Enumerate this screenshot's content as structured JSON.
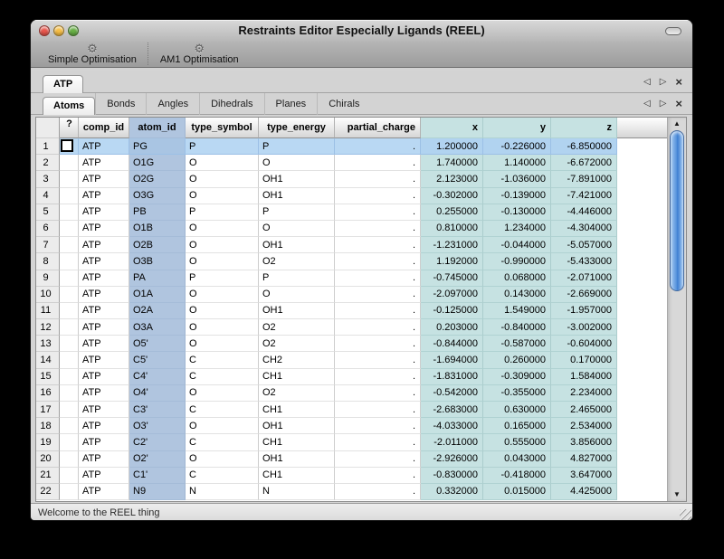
{
  "window": {
    "title": "Restraints Editor Especially Ligands (REEL)",
    "traffic_lights": [
      "close",
      "minimize",
      "zoom"
    ],
    "toolbar_pill": "toolbar-toggle"
  },
  "toolbar": {
    "items": [
      {
        "label": "Simple Optimisation",
        "icon": "gear-icon"
      },
      {
        "label": "AM1 Optimisation",
        "icon": "gear-icon"
      }
    ]
  },
  "doc_tab_bar": {
    "tabs": [
      {
        "label": "ATP",
        "selected": true
      }
    ],
    "controls": [
      {
        "name": "nav-left",
        "glyph": "left-triangle"
      },
      {
        "name": "nav-right",
        "glyph": "right-triangle"
      },
      {
        "name": "close",
        "glyph": "x"
      }
    ]
  },
  "section_tab_bar": {
    "tabs": [
      {
        "label": "Atoms",
        "selected": true
      },
      {
        "label": "Bonds",
        "selected": false
      },
      {
        "label": "Angles",
        "selected": false
      },
      {
        "label": "Dihedrals",
        "selected": false
      },
      {
        "label": "Planes",
        "selected": false
      },
      {
        "label": "Chirals",
        "selected": false
      }
    ],
    "controls": [
      {
        "name": "nav-left",
        "glyph": "left-triangle"
      },
      {
        "name": "nav-right",
        "glyph": "right-triangle"
      },
      {
        "name": "close",
        "glyph": "x"
      }
    ]
  },
  "table": {
    "columns": [
      "",
      "?",
      "comp_id",
      "atom_id",
      "type_symbol",
      "type_energy",
      "partial_charge",
      "x",
      "y",
      "z"
    ],
    "selected_row": 1,
    "rows": [
      [
        "1",
        "",
        "ATP",
        "PG",
        "P",
        "P",
        ".",
        "1.200000",
        "-0.226000",
        "-6.850000"
      ],
      [
        "2",
        "",
        "ATP",
        "O1G",
        "O",
        "O",
        ".",
        "1.740000",
        "1.140000",
        "-6.672000"
      ],
      [
        "3",
        "",
        "ATP",
        "O2G",
        "O",
        "OH1",
        ".",
        "2.123000",
        "-1.036000",
        "-7.891000"
      ],
      [
        "4",
        "",
        "ATP",
        "O3G",
        "O",
        "OH1",
        ".",
        "-0.302000",
        "-0.139000",
        "-7.421000"
      ],
      [
        "5",
        "",
        "ATP",
        "PB",
        "P",
        "P",
        ".",
        "0.255000",
        "-0.130000",
        "-4.446000"
      ],
      [
        "6",
        "",
        "ATP",
        "O1B",
        "O",
        "O",
        ".",
        "0.810000",
        "1.234000",
        "-4.304000"
      ],
      [
        "7",
        "",
        "ATP",
        "O2B",
        "O",
        "OH1",
        ".",
        "-1.231000",
        "-0.044000",
        "-5.057000"
      ],
      [
        "8",
        "",
        "ATP",
        "O3B",
        "O",
        "O2",
        ".",
        "1.192000",
        "-0.990000",
        "-5.433000"
      ],
      [
        "9",
        "",
        "ATP",
        "PA",
        "P",
        "P",
        ".",
        "-0.745000",
        "0.068000",
        "-2.071000"
      ],
      [
        "10",
        "",
        "ATP",
        "O1A",
        "O",
        "O",
        ".",
        "-2.097000",
        "0.143000",
        "-2.669000"
      ],
      [
        "11",
        "",
        "ATP",
        "O2A",
        "O",
        "OH1",
        ".",
        "-0.125000",
        "1.549000",
        "-1.957000"
      ],
      [
        "12",
        "",
        "ATP",
        "O3A",
        "O",
        "O2",
        ".",
        "0.203000",
        "-0.840000",
        "-3.002000"
      ],
      [
        "13",
        "",
        "ATP",
        "O5'",
        "O",
        "O2",
        ".",
        "-0.844000",
        "-0.587000",
        "-0.604000"
      ],
      [
        "14",
        "",
        "ATP",
        "C5'",
        "C",
        "CH2",
        ".",
        "-1.694000",
        "0.260000",
        "0.170000"
      ],
      [
        "15",
        "",
        "ATP",
        "C4'",
        "C",
        "CH1",
        ".",
        "-1.831000",
        "-0.309000",
        "1.584000"
      ],
      [
        "16",
        "",
        "ATP",
        "O4'",
        "O",
        "O2",
        ".",
        "-0.542000",
        "-0.355000",
        "2.234000"
      ],
      [
        "17",
        "",
        "ATP",
        "C3'",
        "C",
        "CH1",
        ".",
        "-2.683000",
        "0.630000",
        "2.465000"
      ],
      [
        "18",
        "",
        "ATP",
        "O3'",
        "O",
        "OH1",
        ".",
        "-4.033000",
        "0.165000",
        "2.534000"
      ],
      [
        "19",
        "",
        "ATP",
        "C2'",
        "C",
        "CH1",
        ".",
        "-2.011000",
        "0.555000",
        "3.856000"
      ],
      [
        "20",
        "",
        "ATP",
        "O2'",
        "O",
        "OH1",
        ".",
        "-2.926000",
        "0.043000",
        "4.827000"
      ],
      [
        "21",
        "",
        "ATP",
        "C1'",
        "C",
        "CH1",
        ".",
        "-0.830000",
        "-0.418000",
        "3.647000"
      ],
      [
        "22",
        "",
        "ATP",
        "N9",
        "N",
        "N",
        ".",
        "0.332000",
        "0.015000",
        "4.425000"
      ]
    ]
  },
  "status_bar": {
    "message": "Welcome to the REEL thing"
  },
  "colors": {
    "selection": "#b9d8f3",
    "atom_id_column": "#b0c5df",
    "coordinate_columns": "#c6e2e2",
    "scrollbar_thumb": "#4f8fdc",
    "traffic_red": "#e8564d",
    "traffic_yellow": "#f6bd44",
    "traffic_green": "#68b045"
  }
}
